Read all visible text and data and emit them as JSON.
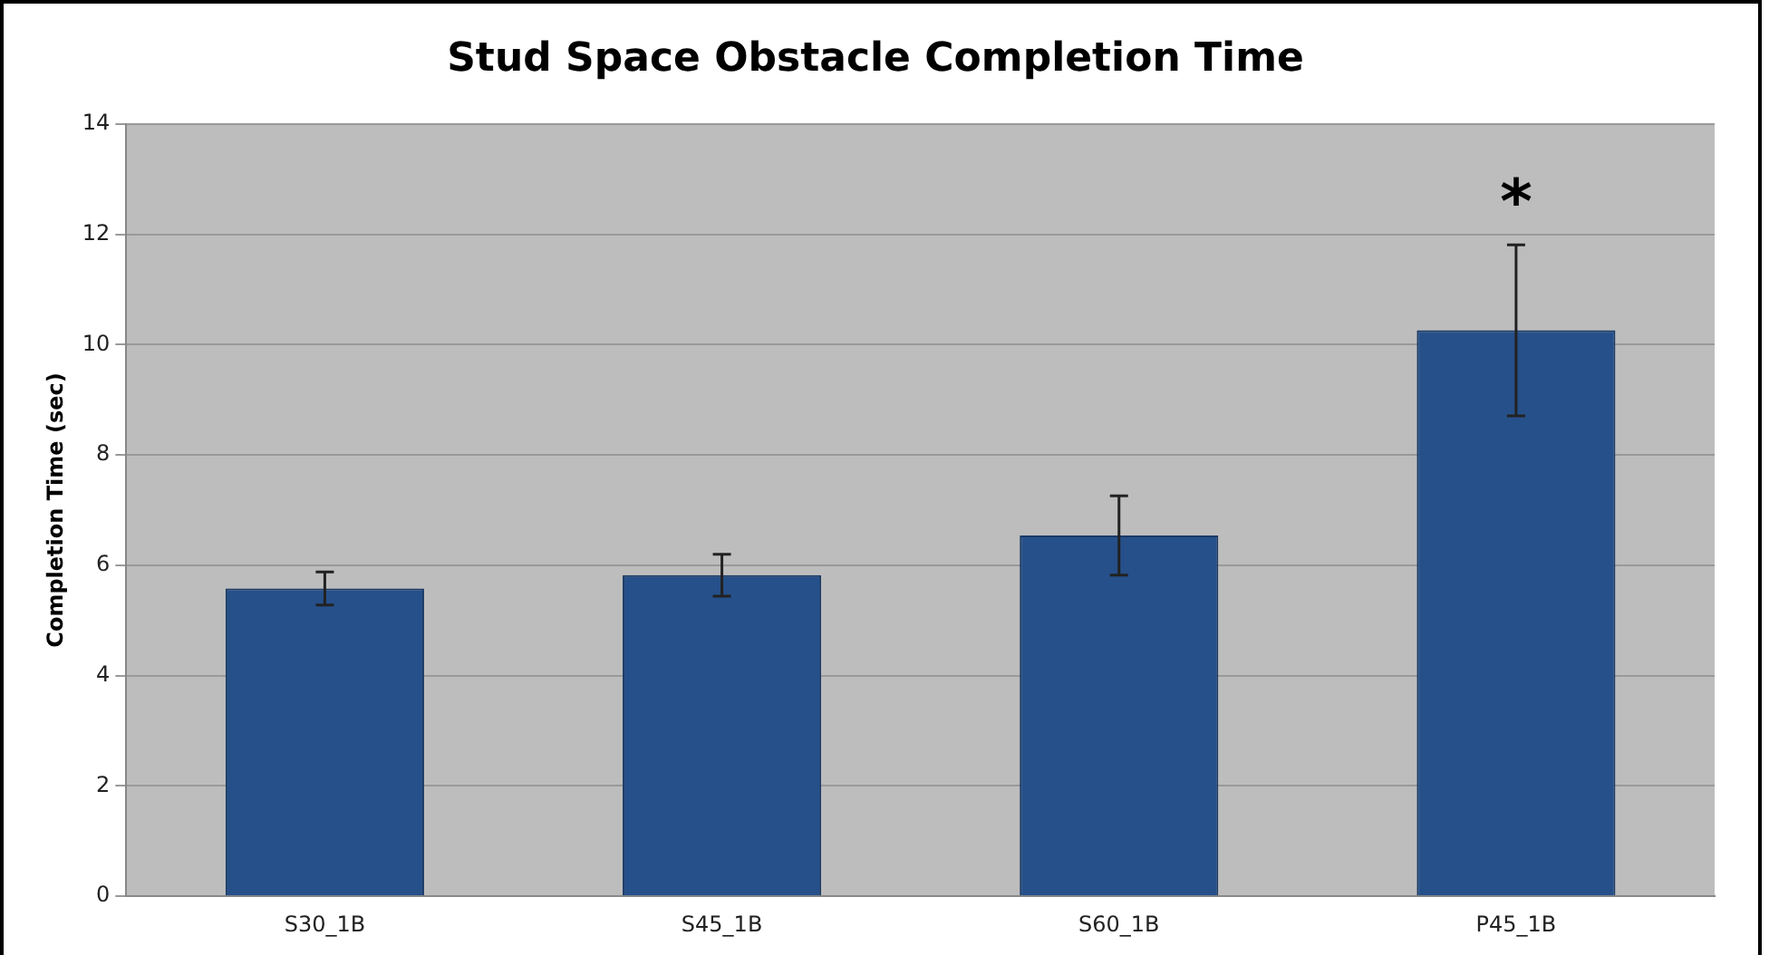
{
  "chart_data": {
    "type": "bar",
    "title": "Stud Space Obstacle Completion Time",
    "ylabel": "Completion Time (sec)",
    "categories": [
      "S30_1B",
      "S45_1B",
      "S60_1B",
      "P45_1B"
    ],
    "values": [
      5.58,
      5.82,
      6.54,
      10.26
    ],
    "errors": [
      0.3,
      0.38,
      0.72,
      1.55
    ],
    "color": "#26508a",
    "ylim": [
      0,
      14
    ],
    "yticks": [
      0,
      2,
      4,
      6,
      8,
      10,
      12,
      14
    ],
    "grid": "y",
    "annotations": [
      "*"
    ]
  }
}
